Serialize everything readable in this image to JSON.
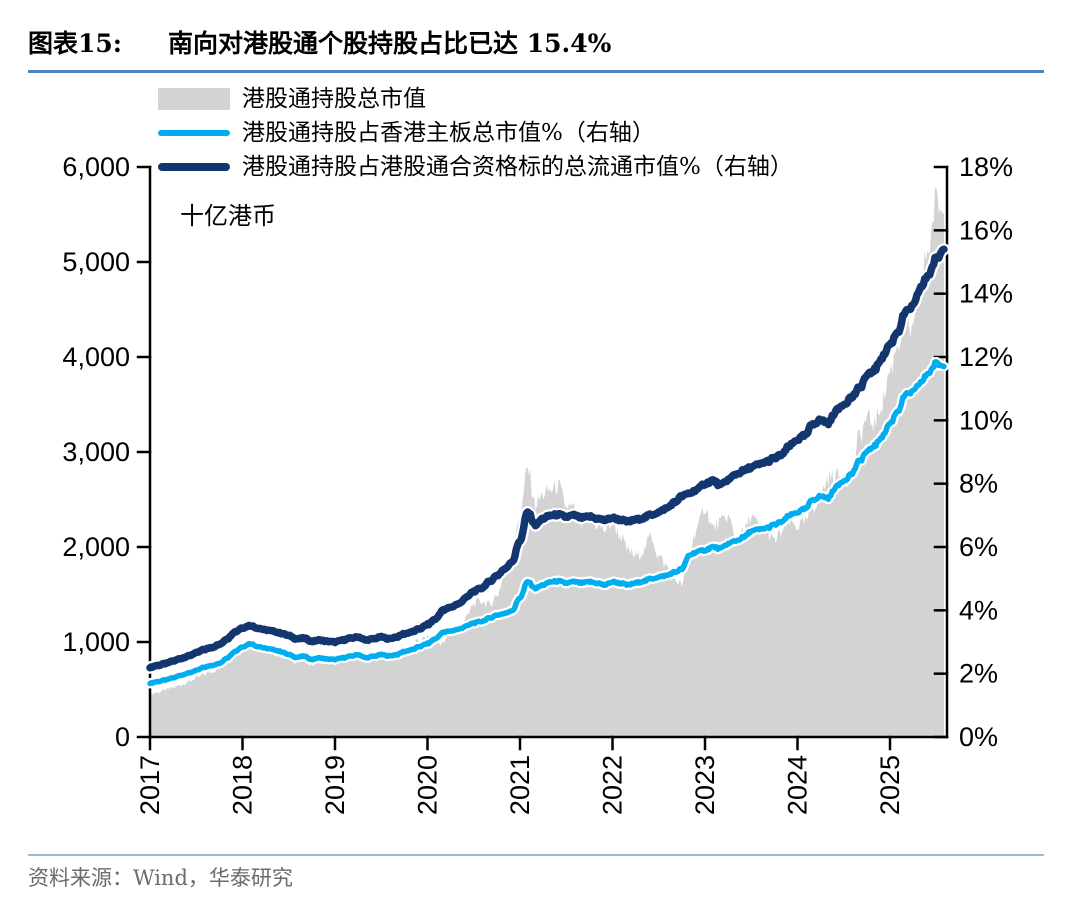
{
  "figure": {
    "label": "图表15:",
    "title": "南向对港股通个股持股占比已达 15.4%"
  },
  "legend": {
    "items": [
      {
        "type": "area",
        "label": "港股通持股总市值"
      },
      {
        "type": "line",
        "label": "港股通持股占香港主板总市值%（右轴）"
      },
      {
        "type": "line",
        "label": "港股通持股占港股通合资格标的总流通市值%（右轴）"
      }
    ]
  },
  "source": {
    "text": "资料来源：Wind，华泰研究"
  },
  "colors": {
    "area_fill": "#d3d3d3",
    "line_light": "#00AEEF",
    "line_dark": "#14366F",
    "axis": "#000000",
    "title_rule": "#4f81bd",
    "source_rule": "#a3b8cc"
  },
  "chart_data": {
    "type": "area+line combo (monthly, 2017-01 to 2025-08)",
    "title": "南向对港股通个股持股占比已达 15.4%",
    "x_tick_labels": [
      "2017",
      "2018",
      "2019",
      "2020",
      "2021",
      "2022",
      "2023",
      "2024",
      "2025"
    ],
    "left_axis": {
      "label": "十亿港币",
      "range": [
        0,
        6000
      ],
      "tick_step": 1000,
      "ticks": [
        0,
        1000,
        2000,
        3000,
        4000,
        5000,
        6000
      ]
    },
    "right_axis": {
      "label": "%",
      "range": [
        0,
        18
      ],
      "tick_step": 2,
      "ticks": [
        0,
        2,
        4,
        6,
        8,
        10,
        12,
        14,
        16,
        18
      ]
    },
    "grid": false,
    "legend_position": "top-left",
    "series": [
      {
        "name": "港股通持股总市值",
        "type": "area",
        "axis": "left",
        "unit": "十亿港币",
        "monthly_values": [
          450,
          470,
          495,
          520,
          550,
          580,
          620,
          660,
          690,
          720,
          790,
          880,
          950,
          975,
          930,
          905,
          885,
          855,
          820,
          795,
          805,
          765,
          790,
          775,
          780,
          820,
          845,
          870,
          825,
          855,
          875,
          850,
          880,
          920,
          960,
          1020,
          1050,
          1010,
          985,
          1090,
          1140,
          1250,
          1400,
          1430,
          1390,
          1490,
          1700,
          1900,
          2350,
          2820,
          2450,
          2550,
          2600,
          2640,
          2420,
          2400,
          2220,
          2350,
          2230,
          2180,
          2250,
          2120,
          1960,
          1900,
          1960,
          2120,
          1900,
          1800,
          1660,
          1600,
          1980,
          2200,
          2420,
          2200,
          2260,
          2320,
          2080,
          2160,
          2320,
          2220,
          2160,
          2060,
          2160,
          2260,
          2220,
          2260,
          2420,
          2560,
          2720,
          2760,
          2700,
          2760,
          3150,
          3350,
          3300,
          3520,
          3850,
          4150,
          4350,
          4250,
          4800,
          5150,
          5650,
          5500
        ]
      },
      {
        "name": "港股通持股占香港主板总市值%",
        "type": "line",
        "axis": "right",
        "unit": "%",
        "monthly_values": [
          1.7,
          1.75,
          1.8,
          1.87,
          1.95,
          2.02,
          2.1,
          2.2,
          2.26,
          2.32,
          2.5,
          2.7,
          2.85,
          2.95,
          2.86,
          2.8,
          2.76,
          2.7,
          2.6,
          2.52,
          2.55,
          2.45,
          2.5,
          2.46,
          2.45,
          2.5,
          2.55,
          2.6,
          2.5,
          2.55,
          2.6,
          2.56,
          2.6,
          2.7,
          2.76,
          2.86,
          2.95,
          3.1,
          3.3,
          3.35,
          3.4,
          3.5,
          3.6,
          3.65,
          3.75,
          3.85,
          3.9,
          4.0,
          4.4,
          4.9,
          4.7,
          4.8,
          4.9,
          4.92,
          4.86,
          4.9,
          4.86,
          4.9,
          4.86,
          4.8,
          4.9,
          4.86,
          4.8,
          4.86,
          4.92,
          5.0,
          5.05,
          5.1,
          5.2,
          5.3,
          5.75,
          5.85,
          5.9,
          6.0,
          5.95,
          6.1,
          6.2,
          6.3,
          6.5,
          6.55,
          6.6,
          6.7,
          6.8,
          7.0,
          7.1,
          7.2,
          7.5,
          7.6,
          7.55,
          7.9,
          8.1,
          8.3,
          8.7,
          9.0,
          9.2,
          9.5,
          9.9,
          10.3,
          10.8,
          10.9,
          11.2,
          11.5,
          11.8,
          11.7
        ]
      },
      {
        "name": "港股通持股占港股通合资格标的总流通市值%",
        "type": "line",
        "axis": "right",
        "unit": "%",
        "monthly_values": [
          2.2,
          2.26,
          2.32,
          2.4,
          2.48,
          2.56,
          2.66,
          2.76,
          2.83,
          2.92,
          3.1,
          3.32,
          3.45,
          3.52,
          3.44,
          3.38,
          3.34,
          3.28,
          3.2,
          3.1,
          3.12,
          3.02,
          3.06,
          3.02,
          3.0,
          3.06,
          3.12,
          3.16,
          3.06,
          3.1,
          3.16,
          3.1,
          3.16,
          3.26,
          3.32,
          3.42,
          3.55,
          3.72,
          4.0,
          4.1,
          4.2,
          4.4,
          4.6,
          4.7,
          4.9,
          5.1,
          5.3,
          5.55,
          6.2,
          7.1,
          6.7,
          6.9,
          7.0,
          7.02,
          6.95,
          7.0,
          6.92,
          6.96,
          6.9,
          6.85,
          6.92,
          6.86,
          6.8,
          6.86,
          6.92,
          7.02,
          7.1,
          7.22,
          7.4,
          7.6,
          7.7,
          7.82,
          8.0,
          8.1,
          7.95,
          8.12,
          8.3,
          8.4,
          8.52,
          8.6,
          8.7,
          8.8,
          8.92,
          9.2,
          9.4,
          9.52,
          9.9,
          10.0,
          9.92,
          10.3,
          10.52,
          10.72,
          11.0,
          11.4,
          11.6,
          12.0,
          12.4,
          12.8,
          13.4,
          13.6,
          14.2,
          14.6,
          15.1,
          15.4
        ]
      }
    ],
    "annotations": {
      "unit_label": "十亿港币"
    }
  }
}
